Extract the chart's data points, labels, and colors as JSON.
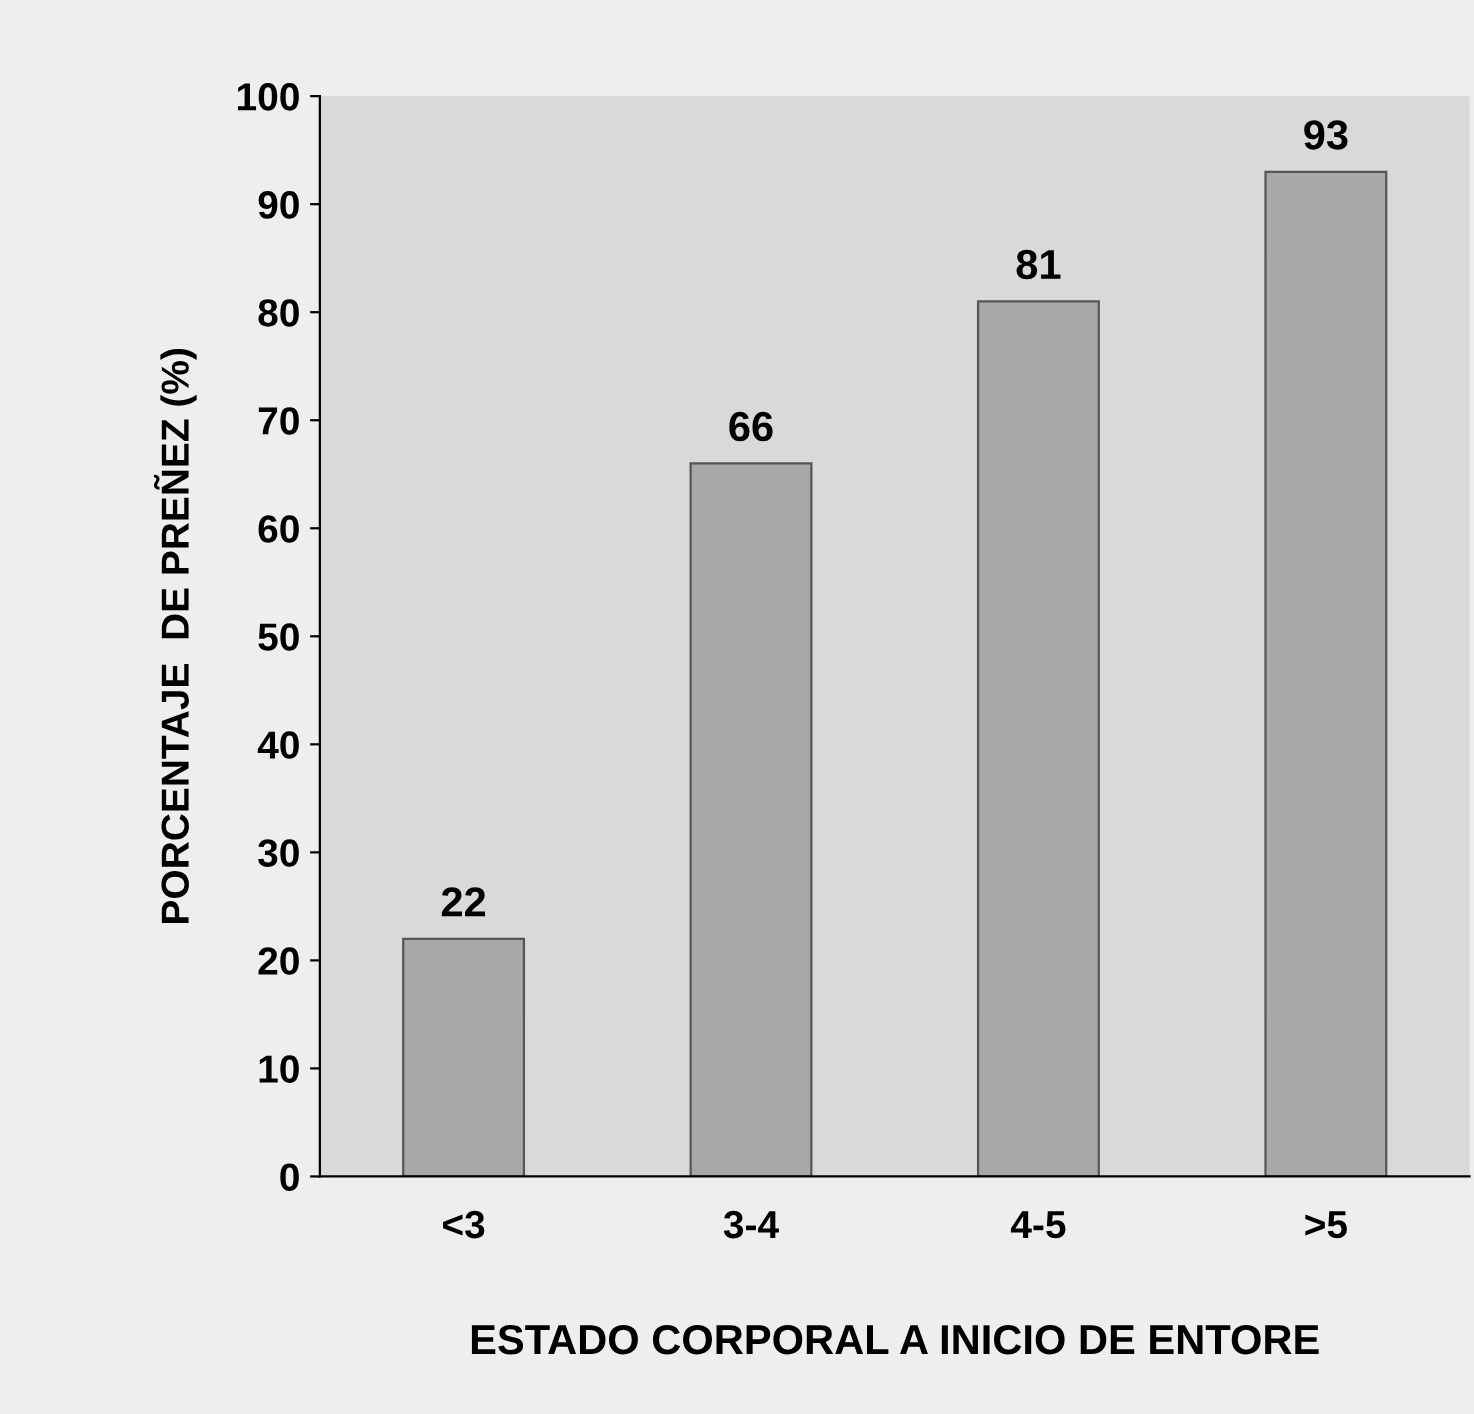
{
  "chart_data": {
    "type": "bar",
    "xlabel": "ESTADO CORPORAL A INICIO DE ENTORE",
    "ylabel": "PORCENTAJE  DE PREÑEZ (%)",
    "categories": [
      "<3",
      "3-4",
      "4-5",
      ">5"
    ],
    "values": [
      22,
      66,
      81,
      93
    ],
    "color": "#a8a8a8",
    "ylim": [
      0,
      100
    ],
    "yticks": [
      0,
      10,
      20,
      30,
      40,
      50,
      60,
      70,
      80,
      90,
      100
    ],
    "data_labels": true,
    "grid": false,
    "legend": false
  }
}
